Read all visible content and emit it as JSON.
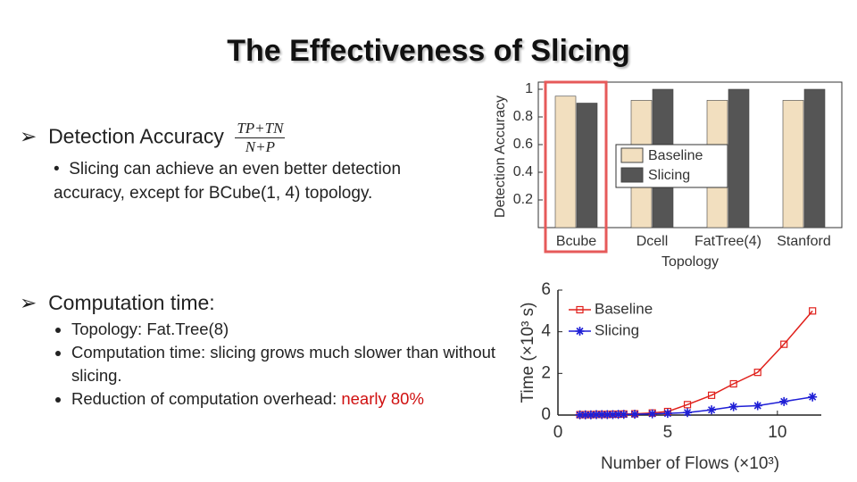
{
  "slide": {
    "title": "The Effectiveness of Slicing",
    "section1": {
      "heading": "Detection Accuracy",
      "formula": {
        "numerator": "TP+TN",
        "denominator": "N+P"
      },
      "bullets": [
        "Slicing can achieve an even better detection accuracy, except for BCube(1, 4) topology."
      ]
    },
    "section2": {
      "heading": "Computation time:",
      "bullets": [
        "Topology: Fat.Tree(8)",
        "Computation time: slicing grows much slower than without slicing."
      ],
      "last_bullet": {
        "text": "Reduction of computation overhead: ",
        "highlight": "nearly 80%"
      }
    }
  },
  "chart_data": [
    {
      "type": "bar",
      "categories": [
        "Bcube",
        "Dcell",
        "FatTree(4)",
        "Stanford"
      ],
      "series": [
        {
          "name": "Baseline",
          "color": "#f2dfbf",
          "values": [
            0.95,
            0.92,
            0.92,
            0.92
          ]
        },
        {
          "name": "Slicing",
          "color": "#555555",
          "values": [
            0.9,
            1,
            1,
            1
          ]
        }
      ],
      "ylim": [
        0,
        1
      ],
      "yticks": [
        0.2,
        0.4,
        0.6,
        0.8,
        1
      ],
      "ylabel": "Detection Accuracy",
      "xlabel": "Topology",
      "legend": "center-right"
    },
    {
      "type": "line",
      "x": [
        1,
        1.25,
        1.5,
        1.75,
        2,
        2.25,
        2.5,
        2.75,
        3,
        3.5,
        4.3,
        5,
        5.9,
        7,
        8,
        9.1,
        10.3,
        11.6
      ],
      "series": [
        {
          "name": "Baseline",
          "color": "#e0201b",
          "marker": "square",
          "values": [
            0.02,
            0.02,
            0.02,
            0.03,
            0.03,
            0.03,
            0.04,
            0.04,
            0.05,
            0.06,
            0.1,
            0.17,
            0.5,
            0.95,
            1.5,
            2.05,
            3.4,
            5.0
          ]
        },
        {
          "name": "Slicing",
          "color": "#1f1fd6",
          "marker": "asterisk",
          "values": [
            0.01,
            0.01,
            0.01,
            0.02,
            0.02,
            0.02,
            0.02,
            0.03,
            0.03,
            0.04,
            0.06,
            0.08,
            0.12,
            0.25,
            0.4,
            0.45,
            0.65,
            0.87
          ]
        }
      ],
      "xlim": [
        0,
        12
      ],
      "xticks": [
        0,
        5,
        10
      ],
      "ylim": [
        0,
        6
      ],
      "yticks": [
        0,
        2,
        4,
        6
      ],
      "ylabel": "Time (×10³ s)",
      "xlabel": "Number of Flows (×10³)",
      "legend": "upper-left"
    }
  ]
}
